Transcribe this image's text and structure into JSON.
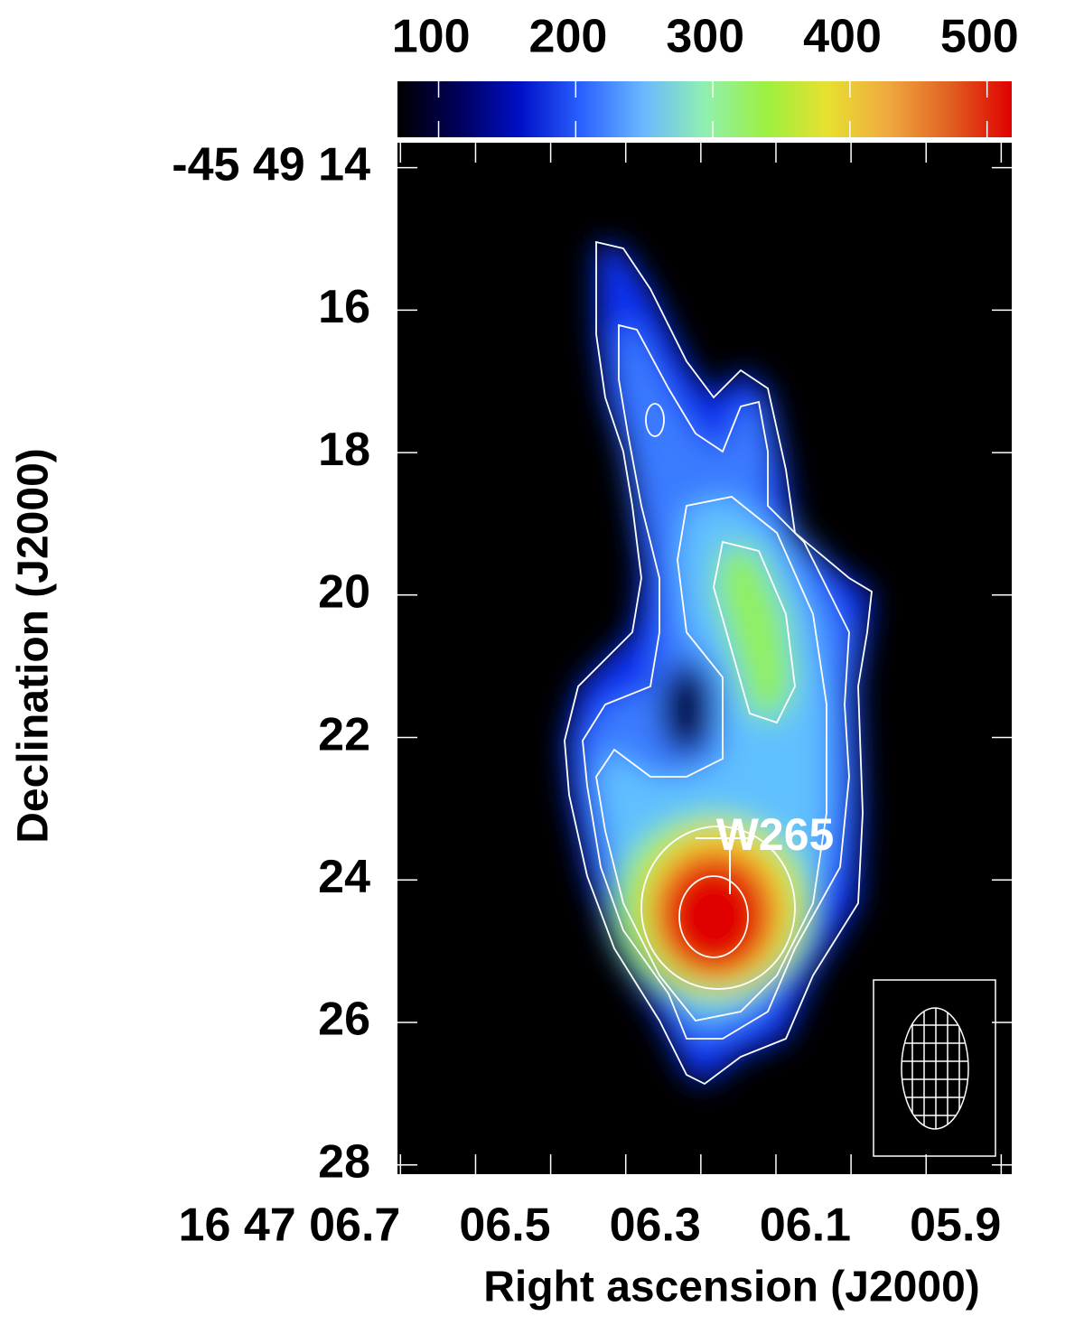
{
  "chart_data": {
    "type": "image",
    "xlabel": "Right ascension (J2000)",
    "ylabel": "Declination (J2000)",
    "xlim": [
      6.704,
      5.886
    ],
    "xticks": [
      {
        "value": 6.7,
        "label": "16 47 06.7"
      },
      {
        "value": 6.5,
        "label": "06.5"
      },
      {
        "value": 6.3,
        "label": "06.3"
      },
      {
        "value": 6.1,
        "label": "06.1"
      },
      {
        "value": 5.9,
        "label": "05.9"
      }
    ],
    "xminorticks": [
      6.6,
      6.4,
      6.2,
      6.0
    ],
    "ylim": [
      13.65,
      28.13
    ],
    "yticks": [
      {
        "value": 14,
        "label": "-45 49 14"
      },
      16,
      18,
      20,
      22,
      24,
      26,
      28
    ],
    "colorbar": {
      "lim": [
        70,
        518
      ],
      "ticks": [
        100,
        200,
        300,
        400,
        500
      ],
      "colormap": [
        "#000000",
        "#00005a",
        "#0010c8",
        "#2a62ff",
        "#6ab8ff",
        "#90f0b0",
        "#9cf040",
        "#e8e030",
        "#f0a840",
        "#e06020",
        "#e00000"
      ]
    },
    "annotations": [
      "W265"
    ]
  }
}
